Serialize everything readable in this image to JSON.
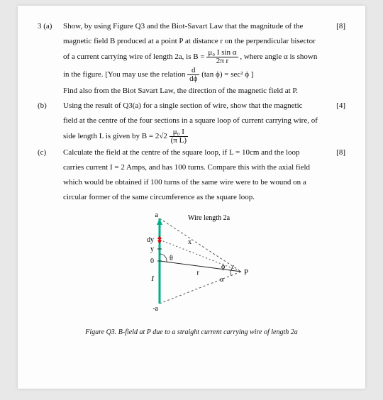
{
  "question_number": "3 (a)",
  "part_a": {
    "line1": "Show, by using Figure Q3 and the Biot-Savart Law that the magnitude of the",
    "marks": "[8]",
    "line2": "magnetic field B produced at a point P at distance r on the perpendicular bisector",
    "line3_pre": "of a current carrying wire of length 2a,  is  B = ",
    "formula_num": "μ₀ I sin α",
    "formula_den": "2π r",
    "line3_post": ",  where angle α is shown",
    "line4_pre": "in the figure.  [You may use the relation ",
    "rel_num": "d",
    "rel_den": "dϕ",
    "rel_rhs": "(tan ϕ) = sec² ϕ ]",
    "line5": "Find also from the Biot Savart Law, the direction of the magnetic field at P."
  },
  "part_b": {
    "label": "(b)",
    "line1": "Using the result of Q3(a) for a single section of wire, show that the magnetic",
    "marks": "[4]",
    "line2": "field at the centre of the four sections in a square loop of current carrying wire, of",
    "line3_pre": "side length L is given by  B =  2√2 ",
    "formula_num": "μ₀ I",
    "formula_den": "(π L)"
  },
  "part_c": {
    "label": "(c)",
    "line1": "Calculate the field at the centre of the square loop, if L = 10cm and the loop",
    "marks": "[8]",
    "line2": "carries current I = 2 Amps, and has 100 turns. Compare this with the axial field",
    "line3": "which would be obtained if 100 turns of the same wire were to be wound on a",
    "line4": "circular former of the same circumference as the square loop."
  },
  "figure": {
    "wire_label": "Wire length 2a",
    "a_top": "a",
    "a_bot": "-a",
    "dy": "dy",
    "y": "y",
    "zero": "0",
    "I": "I",
    "x": "x",
    "r": "r",
    "phi": "ϕ",
    "alpha": "α",
    "P": "P",
    "caption": "Figure Q3.  B-field at P due to a straight current carrying wire of length 2a",
    "colors": {
      "wire": "#00b089",
      "dashed": "#555555",
      "solid": "#222222",
      "dy_segment": "#d01010"
    }
  }
}
